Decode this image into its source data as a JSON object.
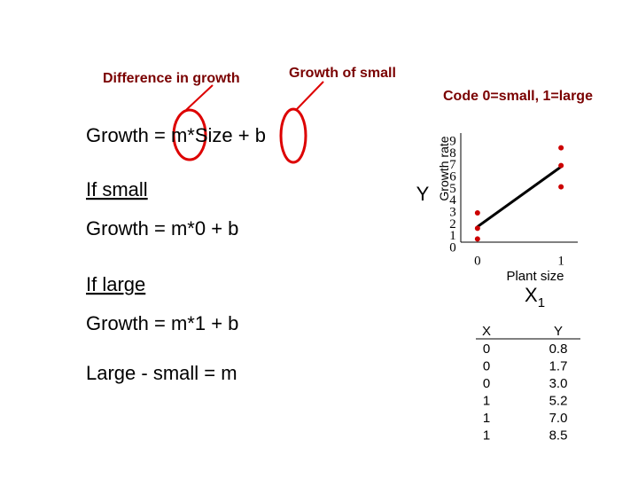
{
  "annotations": {
    "difference": "Difference in growth",
    "growth_small": "Growth of small",
    "code": "Code 0=small, 1=large"
  },
  "equations": [
    "Growth = m*Size + b",
    "If small",
    "Growth = m*0 + b",
    "If large",
    "Growth = m*1 + b",
    "Large - small = m"
  ],
  "chart_data": {
    "type": "scatter",
    "y_label": "Growth rate",
    "y_symbol": "Y",
    "x_label": "Plant size",
    "x_symbol": "X",
    "x_symbol_subscript": "1",
    "x": [
      0,
      0,
      0,
      1,
      1,
      1
    ],
    "values": [
      0.8,
      1.7,
      3.0,
      5.2,
      7.0,
      8.5
    ],
    "color": "#cc0000",
    "fit_line": {
      "x": [
        0,
        1
      ],
      "values": [
        1.83,
        6.9
      ],
      "color": "#000000"
    },
    "xlim": [
      -0.2,
      1.2
    ],
    "ylim": [
      0,
      9
    ],
    "xticks": [
      0,
      1
    ],
    "yticks": [
      0,
      1,
      2,
      3,
      4,
      5,
      6,
      7,
      8,
      9
    ]
  },
  "table": {
    "columns": [
      "X",
      "Y"
    ],
    "rows": [
      [
        "0",
        "0.8"
      ],
      [
        "0",
        "1.7"
      ],
      [
        "0",
        "3.0"
      ],
      [
        "1",
        "5.2"
      ],
      [
        "1",
        "7.0"
      ],
      [
        "1",
        "8.5"
      ]
    ]
  }
}
